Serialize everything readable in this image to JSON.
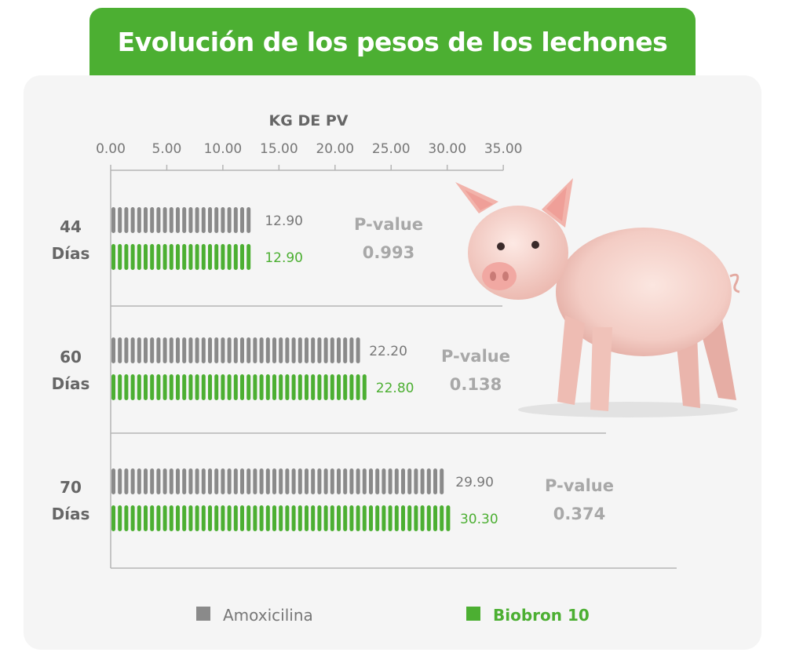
{
  "title": "Evolución de los pesos de los lechones",
  "colors": {
    "title_bg": "#4caf32",
    "amoxicilina": "#8a8a8a",
    "biobron": "#4caf32",
    "panel_bg": "#f5f5f5"
  },
  "chart_data": {
    "type": "bar",
    "orientation": "horizontal",
    "title": "Evolución de los pesos de los lechones",
    "xlabel": "KG DE PV",
    "xlim": [
      0,
      35
    ],
    "xticks": [
      "0.00",
      "5.00",
      "10.00",
      "15.00",
      "20.00",
      "25.00",
      "30.00",
      "35.00"
    ],
    "axis_position": "top",
    "categories": [
      {
        "line1": "44",
        "line2": "Días"
      },
      {
        "line1": "60",
        "line2": "Días"
      },
      {
        "line1": "70",
        "line2": "Días"
      }
    ],
    "series": [
      {
        "name": "Amoxicilina",
        "color": "#8a8a8a",
        "values": [
          12.9,
          22.2,
          29.9
        ],
        "labels": [
          "12.90",
          "22.20",
          "29.90"
        ]
      },
      {
        "name": "Biobron 10",
        "color": "#4caf32",
        "values": [
          12.9,
          22.8,
          30.3
        ],
        "labels": [
          "12.90",
          "22.80",
          "30.30"
        ]
      }
    ],
    "annotations": [
      {
        "line1": "P-value",
        "line2": "0.993"
      },
      {
        "line1": "P-value",
        "line2": "0.138"
      },
      {
        "line1": "P-value",
        "line2": "0.374"
      }
    ],
    "legend": {
      "placement": "bottom"
    }
  },
  "illustration": {
    "pig_icon": "pig-icon"
  }
}
